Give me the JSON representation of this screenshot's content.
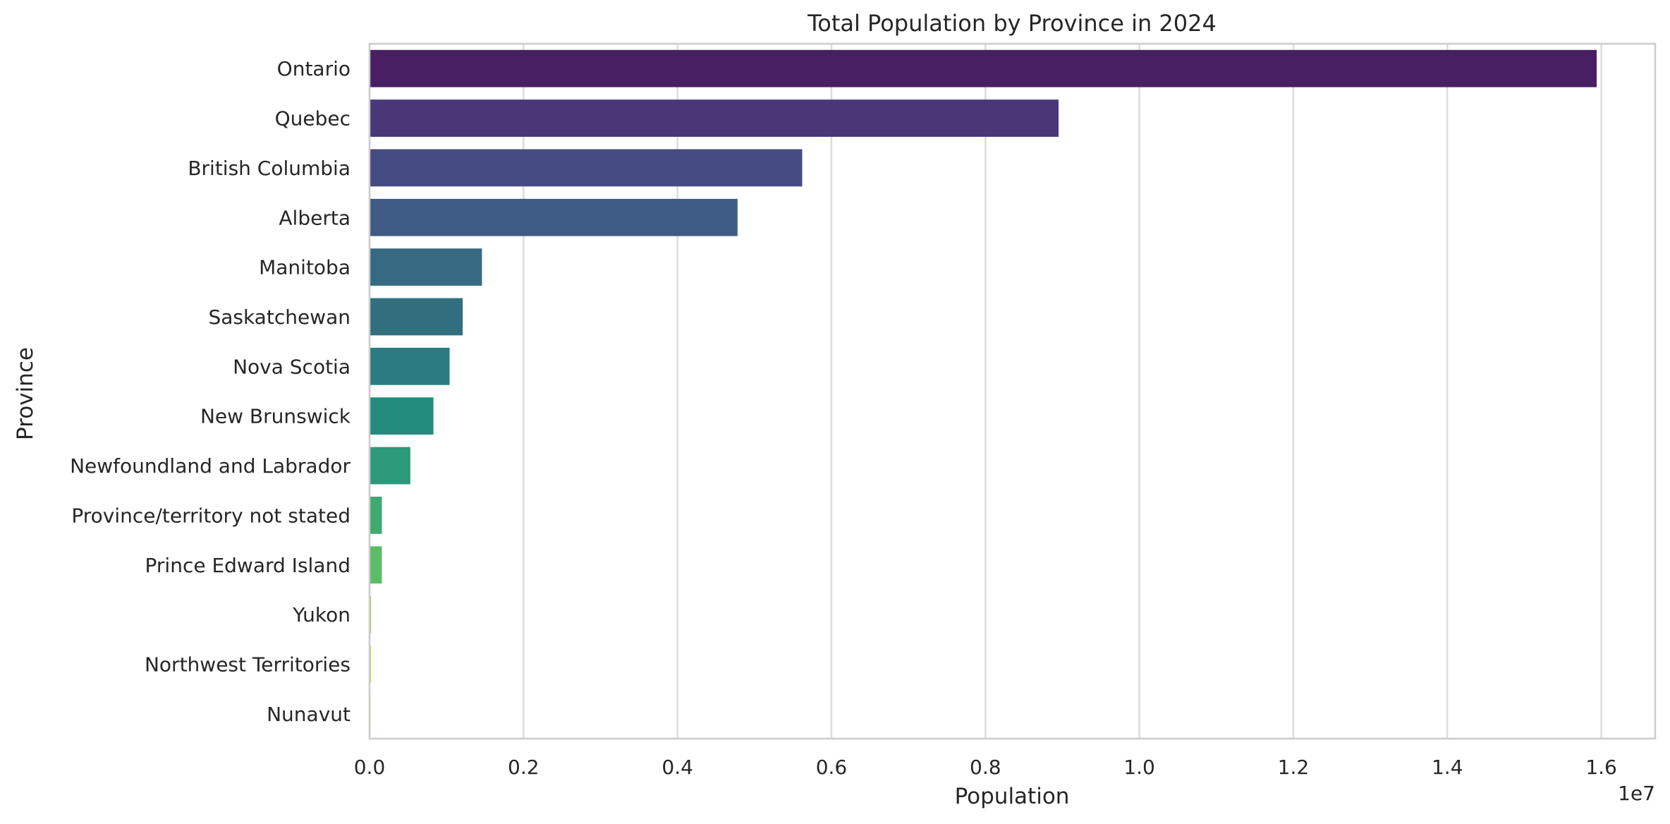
{
  "chart_data": {
    "type": "bar",
    "orientation": "horizontal",
    "title": "Total Population by Province in 2024",
    "xlabel": "Population",
    "ylabel": "Province",
    "offset_label": "1e7",
    "xlim": [
      0,
      16.7
    ],
    "x_scale_note": "values in units of 1e7 shown by offset label",
    "xticks": [
      0.0,
      0.2,
      0.4,
      0.6,
      0.8,
      1.0,
      1.2,
      1.4,
      1.6
    ],
    "xtick_labels": [
      "0.0",
      "0.2",
      "0.4",
      "0.6",
      "0.8",
      "1.0",
      "1.2",
      "1.4",
      "1.6"
    ],
    "grid": "vertical",
    "categories": [
      "Ontario",
      "Quebec",
      "British Columbia",
      "Alberta",
      "Manitoba",
      "Saskatchewan",
      "Nova Scotia",
      "New Brunswick",
      "Newfoundland and Labrador",
      "Province/territory not stated",
      "Prince Edward Island",
      "Yukon",
      "Northwest Territories",
      "Nunavut"
    ],
    "values": [
      15940000,
      8950000,
      5620000,
      4780000,
      1460000,
      1210000,
      1040000,
      830000,
      530000,
      160000,
      160000,
      20000,
      20000,
      10000
    ],
    "colors": [
      "#481f63",
      "#493777",
      "#454c81",
      "#3e5c83",
      "#376a82",
      "#316f7f",
      "#2a7c80",
      "#248b7f",
      "#2b997a",
      "#3faa70",
      "#5bbd67",
      "#9dd24a",
      "#b7dc3a",
      "#cde038"
    ]
  }
}
